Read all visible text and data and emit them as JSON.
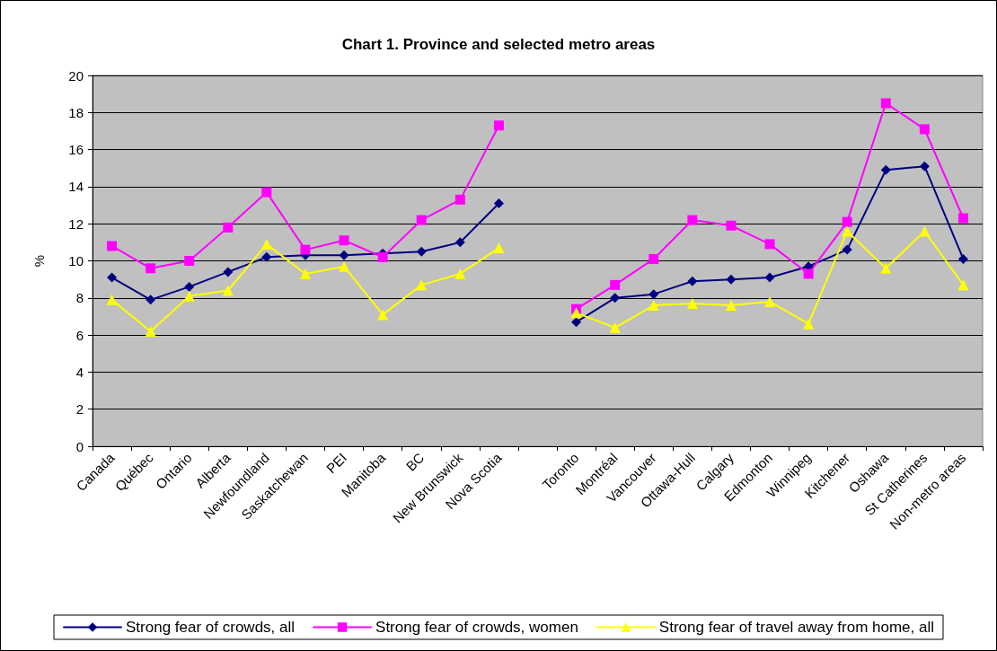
{
  "chart_data": {
    "type": "line",
    "title": "Chart 1. Province and selected metro areas",
    "ylabel": "%",
    "categories": [
      "Canada",
      "Québec",
      "Ontario",
      "Alberta",
      "Newfoundland",
      "Saskatchewan",
      "PEI",
      "Manitoba",
      "BC",
      "New Brunswick",
      "Nova Scotia",
      null,
      "Toronto",
      "Montréal",
      "Vancouver",
      "Ottawa-Hull",
      "Calgary",
      "Edmonton",
      "Winnipeg",
      "Kitchener",
      "Oshawa",
      "St Catherines",
      "Non-metro areas"
    ],
    "series": [
      {
        "name": "Strong fear of crowds, all",
        "color": "#000080",
        "marker": "diamond",
        "values": [
          9.1,
          7.9,
          8.6,
          9.4,
          10.2,
          10.3,
          10.3,
          10.4,
          10.5,
          11.0,
          13.1,
          null,
          6.7,
          8.0,
          8.2,
          8.9,
          9.0,
          9.1,
          9.7,
          10.6,
          14.9,
          15.1,
          10.1
        ]
      },
      {
        "name": "Strong fear of crowds, women",
        "color": "#ff00ff",
        "marker": "square",
        "values": [
          10.8,
          9.6,
          10.0,
          11.8,
          13.7,
          10.6,
          11.1,
          10.2,
          12.2,
          13.3,
          17.3,
          null,
          7.4,
          8.7,
          10.1,
          12.2,
          11.9,
          10.9,
          9.3,
          12.1,
          18.5,
          17.1,
          12.3
        ]
      },
      {
        "name": "Strong fear of travel away from home, all",
        "color": "#ffff00",
        "marker": "triangle",
        "values": [
          7.9,
          6.2,
          8.1,
          8.4,
          10.9,
          9.3,
          9.7,
          7.1,
          8.7,
          9.3,
          10.7,
          null,
          7.2,
          6.4,
          7.6,
          7.7,
          7.6,
          7.8,
          6.6,
          11.6,
          9.6,
          11.6,
          8.7
        ]
      }
    ],
    "ylim": [
      0,
      20
    ],
    "yticks": [
      0,
      2,
      4,
      6,
      8,
      10,
      12,
      14,
      16,
      18,
      20
    ],
    "grid": "y",
    "legend": "bottom",
    "line_style": "solid"
  }
}
